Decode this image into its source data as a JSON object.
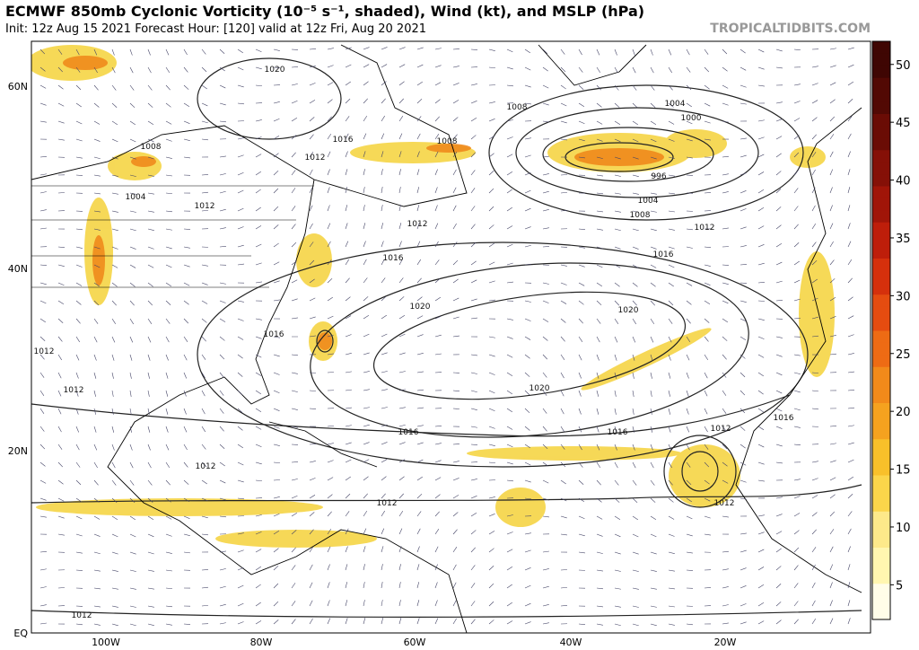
{
  "header": {
    "title": "ECMWF 850mb Cyclonic Vorticity (10⁻⁵ s⁻¹, shaded), Wind (kt), and MSLP (hPa)",
    "subtitle": "Init: 12z Aug 15 2021   Forecast Hour: [120]   valid at 12z Fri, Aug 20 2021",
    "watermark": "TROPICALTIDBITS.COM"
  },
  "map": {
    "lat_labels": [
      "60N",
      "40N",
      "20N",
      "EQ"
    ],
    "lon_labels": [
      "100W",
      "80W",
      "60W",
      "40W",
      "20W"
    ],
    "isobar_labels": [
      "1020",
      "1016",
      "1012",
      "1008",
      "1004",
      "1012",
      "1016",
      "1008",
      "1012",
      "1008",
      "1004",
      "1000",
      "996",
      "1004",
      "1008",
      "1012",
      "1016",
      "1020",
      "1020",
      "1016",
      "1020",
      "1016",
      "1016",
      "1012",
      "1012",
      "1012",
      "1012",
      "1012",
      "1016",
      "1012",
      "1012"
    ]
  },
  "colorbar": {
    "ticks": [
      5,
      10,
      15,
      20,
      25,
      30,
      35,
      40,
      45,
      50
    ]
  }
}
